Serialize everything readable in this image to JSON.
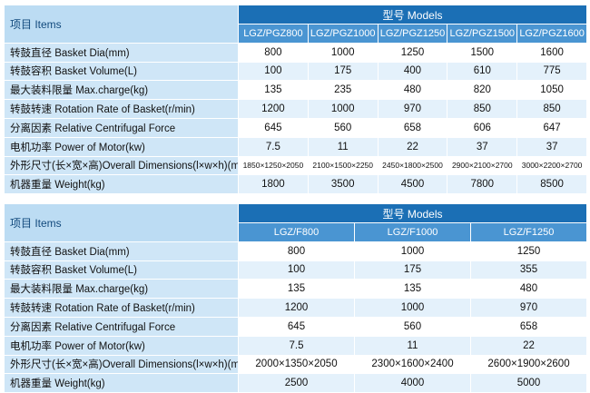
{
  "tables": [
    {
      "items": "项目 Items",
      "models_title": "型号 Models",
      "models": [
        "LGZ/PGZ800",
        "LGZ/PGZ1000",
        "LGZ/PGZ1250",
        "LGZ/PGZ1500",
        "LGZ/PGZ1600"
      ],
      "rows": [
        [
          "转鼓直径 Basket Dia(mm)",
          800,
          1000,
          1250,
          1500,
          1600
        ],
        [
          "转鼓容积 Basket Volume(L)",
          100,
          175,
          400,
          610,
          775
        ],
        [
          "最大装料限量 Max.charge(kg)",
          135,
          235,
          480,
          820,
          1050
        ],
        [
          "转鼓转速 Rotation Rate of Basket(r/min)",
          1200,
          1000,
          970,
          850,
          850
        ],
        [
          "分离因素 Relative Centrifugal Force",
          645,
          560,
          658,
          606,
          647
        ],
        [
          "电机功率 Power of Motor(kw)",
          7.5,
          11,
          22,
          37,
          37
        ],
        [
          "外形尺寸(长×宽×高)Overall Dimensions(l×w×h)(mm)",
          "1850×1250×2050",
          "2100×1500×2250",
          "2450×1800×2500",
          "2900×2100×2700",
          "3000×2200×2700"
        ],
        [
          "机器重量 Weight(kg)",
          1800,
          3500,
          4500,
          7800,
          8500
        ]
      ]
    },
    {
      "items": "项目 Items",
      "models_title": "型号 Models",
      "models": [
        "LGZ/F800",
        "LGZ/F1000",
        "LGZ/F1250"
      ],
      "rows": [
        [
          "转鼓直径 Basket Dia(mm)",
          800,
          1000,
          1250
        ],
        [
          "转鼓容积 Basket Volume(L)",
          100,
          175,
          355
        ],
        [
          "最大装料限量 Max.charge(kg)",
          135,
          135,
          480
        ],
        [
          "转鼓转速 Rotation Rate of Basket(r/min)",
          1200,
          1000,
          970
        ],
        [
          "分离因素 Relative Centrifugal Force",
          645,
          560,
          658
        ],
        [
          "电机功率 Power of Motor(kw)",
          7.5,
          11,
          22
        ],
        [
          "外形尺寸(长×宽×高)Overall Dimensions(l×w×h)(mm)",
          "2000×1350×2050",
          "2300×1600×2400",
          "2600×1900×2600"
        ],
        [
          "机器重量 Weight(kg)",
          2500,
          4000,
          5000
        ]
      ]
    }
  ]
}
